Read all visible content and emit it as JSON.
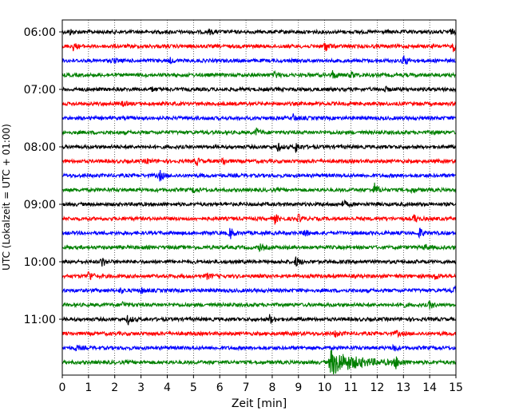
{
  "chart_data": {
    "type": "line",
    "xlabel": "Zeit  [min]",
    "ylabel": "UTC (Lokalzeit = UTC + 01:00)",
    "xlim": [
      0,
      15
    ],
    "x_ticks": [
      "0",
      "1",
      "2",
      "3",
      "4",
      "5",
      "6",
      "7",
      "8",
      "9",
      "10",
      "11",
      "12",
      "13",
      "14",
      "15"
    ],
    "y_ticks": [
      "06:00",
      "07:00",
      "08:00",
      "09:00",
      "10:00",
      "11:00"
    ],
    "grid_x": true,
    "trace_colors": [
      "#000000",
      "#ff0000",
      "#0000ff",
      "#008000"
    ],
    "traces": [
      {
        "start": "06:00",
        "events": [
          [
            0.3,
            0.6
          ],
          [
            5.6,
            0.5
          ],
          [
            14.8,
            0.5
          ]
        ]
      },
      {
        "start": "06:15",
        "events": [
          [
            0.4,
            1.0
          ],
          [
            10.0,
            1.4
          ],
          [
            14.9,
            1.2
          ]
        ]
      },
      {
        "start": "06:30",
        "events": [
          [
            1.9,
            0.6
          ],
          [
            4.1,
            0.6
          ],
          [
            13.0,
            1.4
          ]
        ]
      },
      {
        "start": "06:45",
        "events": [
          [
            8.1,
            0.9
          ],
          [
            10.3,
            1.0
          ],
          [
            11.0,
            0.8
          ]
        ]
      },
      {
        "start": "07:00",
        "events": [
          [
            3.4,
            0.5
          ],
          [
            12.3,
            0.5
          ]
        ]
      },
      {
        "start": "07:15",
        "events": [
          [
            2.3,
            0.6
          ]
        ]
      },
      {
        "start": "07:30",
        "events": [
          [
            8.8,
            0.8
          ]
        ]
      },
      {
        "start": "07:45",
        "events": [
          [
            7.4,
            1.0
          ],
          [
            14.1,
            0.5
          ]
        ]
      },
      {
        "start": "08:00",
        "events": [
          [
            8.2,
            1.0
          ],
          [
            8.9,
            1.3
          ]
        ]
      },
      {
        "start": "08:15",
        "events": [
          [
            3.2,
            0.6
          ],
          [
            5.1,
            0.9
          ],
          [
            6.1,
            1.0
          ]
        ]
      },
      {
        "start": "08:30",
        "events": [
          [
            3.7,
            1.3
          ]
        ]
      },
      {
        "start": "08:45",
        "events": [
          [
            5.0,
            0.7
          ],
          [
            11.9,
            1.6
          ],
          [
            13.3,
            0.6
          ]
        ]
      },
      {
        "start": "09:00",
        "events": [
          [
            10.7,
            0.9
          ]
        ]
      },
      {
        "start": "09:15",
        "events": [
          [
            8.1,
            1.1
          ],
          [
            9.0,
            1.0
          ],
          [
            13.4,
            1.1
          ]
        ]
      },
      {
        "start": "09:30",
        "events": [
          [
            6.4,
            1.5
          ],
          [
            9.2,
            1.0
          ],
          [
            13.6,
            1.3
          ]
        ]
      },
      {
        "start": "09:45",
        "events": [
          [
            7.5,
            0.8
          ],
          [
            13.8,
            0.8
          ]
        ]
      },
      {
        "start": "10:00",
        "events": [
          [
            1.5,
            1.3
          ],
          [
            8.9,
            1.3
          ]
        ]
      },
      {
        "start": "10:15",
        "events": [
          [
            1.0,
            1.5
          ],
          [
            5.5,
            0.7
          ],
          [
            14.2,
            0.8
          ]
        ]
      },
      {
        "start": "10:30",
        "events": [
          [
            2.2,
            0.6
          ],
          [
            3.0,
            0.7
          ],
          [
            14.9,
            1.0
          ]
        ]
      },
      {
        "start": "10:45",
        "events": [
          [
            2.3,
            0.7
          ],
          [
            12.9,
            0.8
          ],
          [
            14.0,
            1.0
          ]
        ]
      },
      {
        "start": "11:00",
        "events": [
          [
            2.5,
            1.2
          ],
          [
            7.9,
            1.1
          ]
        ]
      },
      {
        "start": "11:15",
        "events": [
          [
            10.4,
            0.8
          ],
          [
            12.7,
            0.8
          ]
        ]
      },
      {
        "start": "11:30",
        "events": [
          [
            0.5,
            0.6
          ],
          [
            12.6,
            0.9
          ]
        ]
      },
      {
        "start": "11:45",
        "events": [
          [
            10.2,
            3.2
          ],
          [
            12.7,
            1.5
          ]
        ]
      }
    ]
  }
}
